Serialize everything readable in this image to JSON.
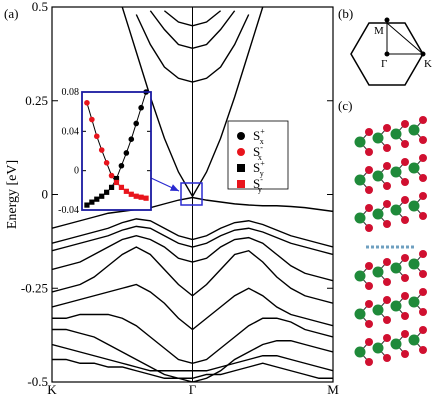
{
  "chart_data": [
    {
      "type": "line",
      "color": "#000000",
      "ylabel": "Energy [eV]",
      "x": [
        0,
        0.1,
        0.2,
        0.3,
        0.4,
        0.5,
        0.6,
        0.7,
        0.8,
        0.9,
        1,
        1.1,
        1.2,
        1.3,
        1.4,
        1.5,
        1.6,
        1.7,
        1.8,
        1.9,
        2
      ],
      "xlim": [
        0,
        2
      ],
      "xticks": [
        {
          "value": 0,
          "label": "K"
        },
        {
          "value": 1,
          "label": "Γ"
        },
        {
          "value": 2,
          "label": "M"
        }
      ],
      "ylim": [
        -0.5,
        0.5
      ],
      "yticks": [
        -0.5,
        -0.25,
        0,
        0.25,
        0.5
      ],
      "series": [
        {
          "values": [
            null,
            null,
            null,
            null,
            null,
            0.5,
            0.38,
            0.26,
            0.15,
            0.06,
            -0.005,
            0.06,
            0.15,
            0.26,
            0.38,
            0.5,
            null,
            null,
            null,
            null,
            null
          ]
        },
        {
          "values": [
            null,
            null,
            null,
            null,
            null,
            null,
            0.48,
            0.4,
            0.34,
            0.31,
            0.3,
            0.31,
            0.34,
            0.4,
            0.48,
            null,
            null,
            null,
            null,
            null,
            null
          ]
        },
        {
          "values": [
            null,
            null,
            null,
            null,
            null,
            null,
            null,
            0.49,
            0.44,
            0.4,
            0.39,
            0.4,
            0.44,
            0.49,
            null,
            null,
            null,
            null,
            null,
            null,
            null
          ]
        },
        {
          "values": [
            null,
            null,
            null,
            null,
            null,
            null,
            null,
            null,
            0.49,
            0.46,
            0.45,
            0.46,
            0.49,
            null,
            null,
            null,
            null,
            null,
            null,
            null,
            null
          ]
        },
        {
          "values": [
            -0.09,
            -0.08,
            -0.07,
            -0.06,
            -0.05,
            -0.045,
            -0.04,
            -0.035,
            -0.025,
            -0.015,
            -0.008,
            -0.015,
            -0.02,
            -0.025,
            -0.028,
            -0.03,
            -0.03,
            -0.032,
            -0.035,
            -0.04,
            -0.045
          ]
        },
        {
          "values": [
            -0.13,
            -0.12,
            -0.11,
            -0.1,
            -0.09,
            -0.075,
            -0.065,
            -0.07,
            -0.09,
            -0.11,
            -0.12,
            -0.11,
            -0.09,
            -0.075,
            -0.07,
            -0.08,
            -0.095,
            -0.11,
            -0.12,
            -0.13,
            -0.14
          ]
        },
        {
          "values": [
            -0.15,
            -0.14,
            -0.13,
            -0.12,
            -0.11,
            -0.095,
            -0.085,
            -0.09,
            -0.11,
            -0.13,
            -0.14,
            -0.13,
            -0.11,
            -0.095,
            -0.09,
            -0.1,
            -0.115,
            -0.13,
            -0.14,
            -0.15,
            -0.16
          ]
        },
        {
          "values": [
            -0.2,
            -0.19,
            -0.18,
            -0.16,
            -0.14,
            -0.12,
            -0.11,
            -0.12,
            -0.14,
            -0.17,
            -0.18,
            -0.17,
            -0.14,
            -0.12,
            -0.115,
            -0.13,
            -0.16,
            -0.19,
            -0.21,
            -0.22,
            -0.23
          ]
        },
        {
          "values": [
            -0.26,
            -0.25,
            -0.24,
            -0.22,
            -0.19,
            -0.16,
            -0.14,
            -0.16,
            -0.2,
            -0.24,
            -0.27,
            -0.24,
            -0.2,
            -0.16,
            -0.15,
            -0.18,
            -0.22,
            -0.25,
            -0.27,
            -0.28,
            -0.29
          ]
        },
        {
          "values": [
            -0.3,
            -0.29,
            -0.28,
            -0.27,
            -0.26,
            -0.25,
            -0.24,
            -0.26,
            -0.29,
            -0.33,
            -0.36,
            -0.33,
            -0.3,
            -0.27,
            -0.25,
            -0.27,
            -0.3,
            -0.32,
            -0.33,
            -0.34,
            -0.35
          ]
        },
        {
          "values": [
            -0.33,
            -0.33,
            -0.32,
            -0.32,
            -0.32,
            -0.33,
            -0.35,
            -0.38,
            -0.41,
            -0.44,
            -0.45,
            -0.44,
            -0.41,
            -0.38,
            -0.35,
            -0.33,
            -0.33,
            -0.34,
            -0.36,
            -0.37,
            -0.38
          ]
        },
        {
          "values": [
            -0.36,
            -0.36,
            -0.37,
            -0.38,
            -0.4,
            -0.42,
            -0.44,
            -0.46,
            -0.48,
            -0.49,
            -0.5,
            -0.49,
            -0.47,
            -0.44,
            -0.42,
            -0.4,
            -0.39,
            -0.39,
            -0.4,
            -0.41,
            -0.42
          ]
        },
        {
          "values": [
            -0.4,
            -0.41,
            -0.42,
            -0.43,
            -0.44,
            -0.45,
            -0.46,
            -0.47,
            -0.47,
            -0.47,
            -0.47,
            -0.47,
            -0.46,
            -0.45,
            -0.44,
            -0.43,
            -0.43,
            -0.44,
            -0.45,
            -0.46,
            -0.47
          ]
        },
        {
          "values": [
            -0.44,
            -0.44,
            -0.45,
            -0.45,
            -0.46,
            -0.46,
            -0.47,
            -0.48,
            -0.49,
            -0.49,
            -0.49,
            -0.48,
            -0.48,
            -0.47,
            -0.46,
            -0.45,
            -0.46,
            -0.47,
            -0.48,
            -0.49,
            -0.49
          ]
        }
      ]
    },
    {
      "type": "scatter",
      "x": [
        0,
        1,
        2,
        3,
        4,
        5,
        6,
        7,
        8,
        9,
        10,
        11,
        12
      ],
      "xlim": [
        -1,
        13
      ],
      "ylim": [
        -0.04,
        0.08
      ],
      "yticks": [
        -0.04,
        0,
        0.04,
        0.08
      ],
      "series": [
        {
          "name": "S",
          "sub": "x",
          "sup": "+",
          "color": "#000000",
          "marker": "circle",
          "values": [
            null,
            null,
            null,
            null,
            null,
            null,
            null,
            0.005,
            0.018,
            0.032,
            0.048,
            0.064,
            0.08
          ]
        },
        {
          "name": "S",
          "sub": "x",
          "sup": "-",
          "color": "#e8141c",
          "marker": "circle",
          "values": [
            0.069,
            0.052,
            0.035,
            0.021,
            0.008,
            -0.005,
            null,
            null,
            null,
            null,
            null,
            null,
            null
          ]
        },
        {
          "name": "S",
          "sub": "y",
          "sup": "+",
          "color": "#000000",
          "marker": "square",
          "values": [
            -0.035,
            -0.032,
            -0.029,
            -0.026,
            -0.022,
            -0.017,
            -0.008,
            null,
            null,
            null,
            null,
            null,
            null
          ]
        },
        {
          "name": "S",
          "sub": "y",
          "sup": "-",
          "color": "#e8141c",
          "marker": "square",
          "values": [
            null,
            null,
            null,
            null,
            null,
            null,
            -0.012,
            -0.017,
            -0.021,
            -0.024,
            -0.026,
            -0.027,
            -0.028
          ]
        }
      ]
    }
  ],
  "panel_labels": [
    "(a)",
    "(b)",
    "(c)"
  ],
  "brillouin_zone": {
    "labels": [
      "M",
      "Γ",
      "K"
    ]
  }
}
